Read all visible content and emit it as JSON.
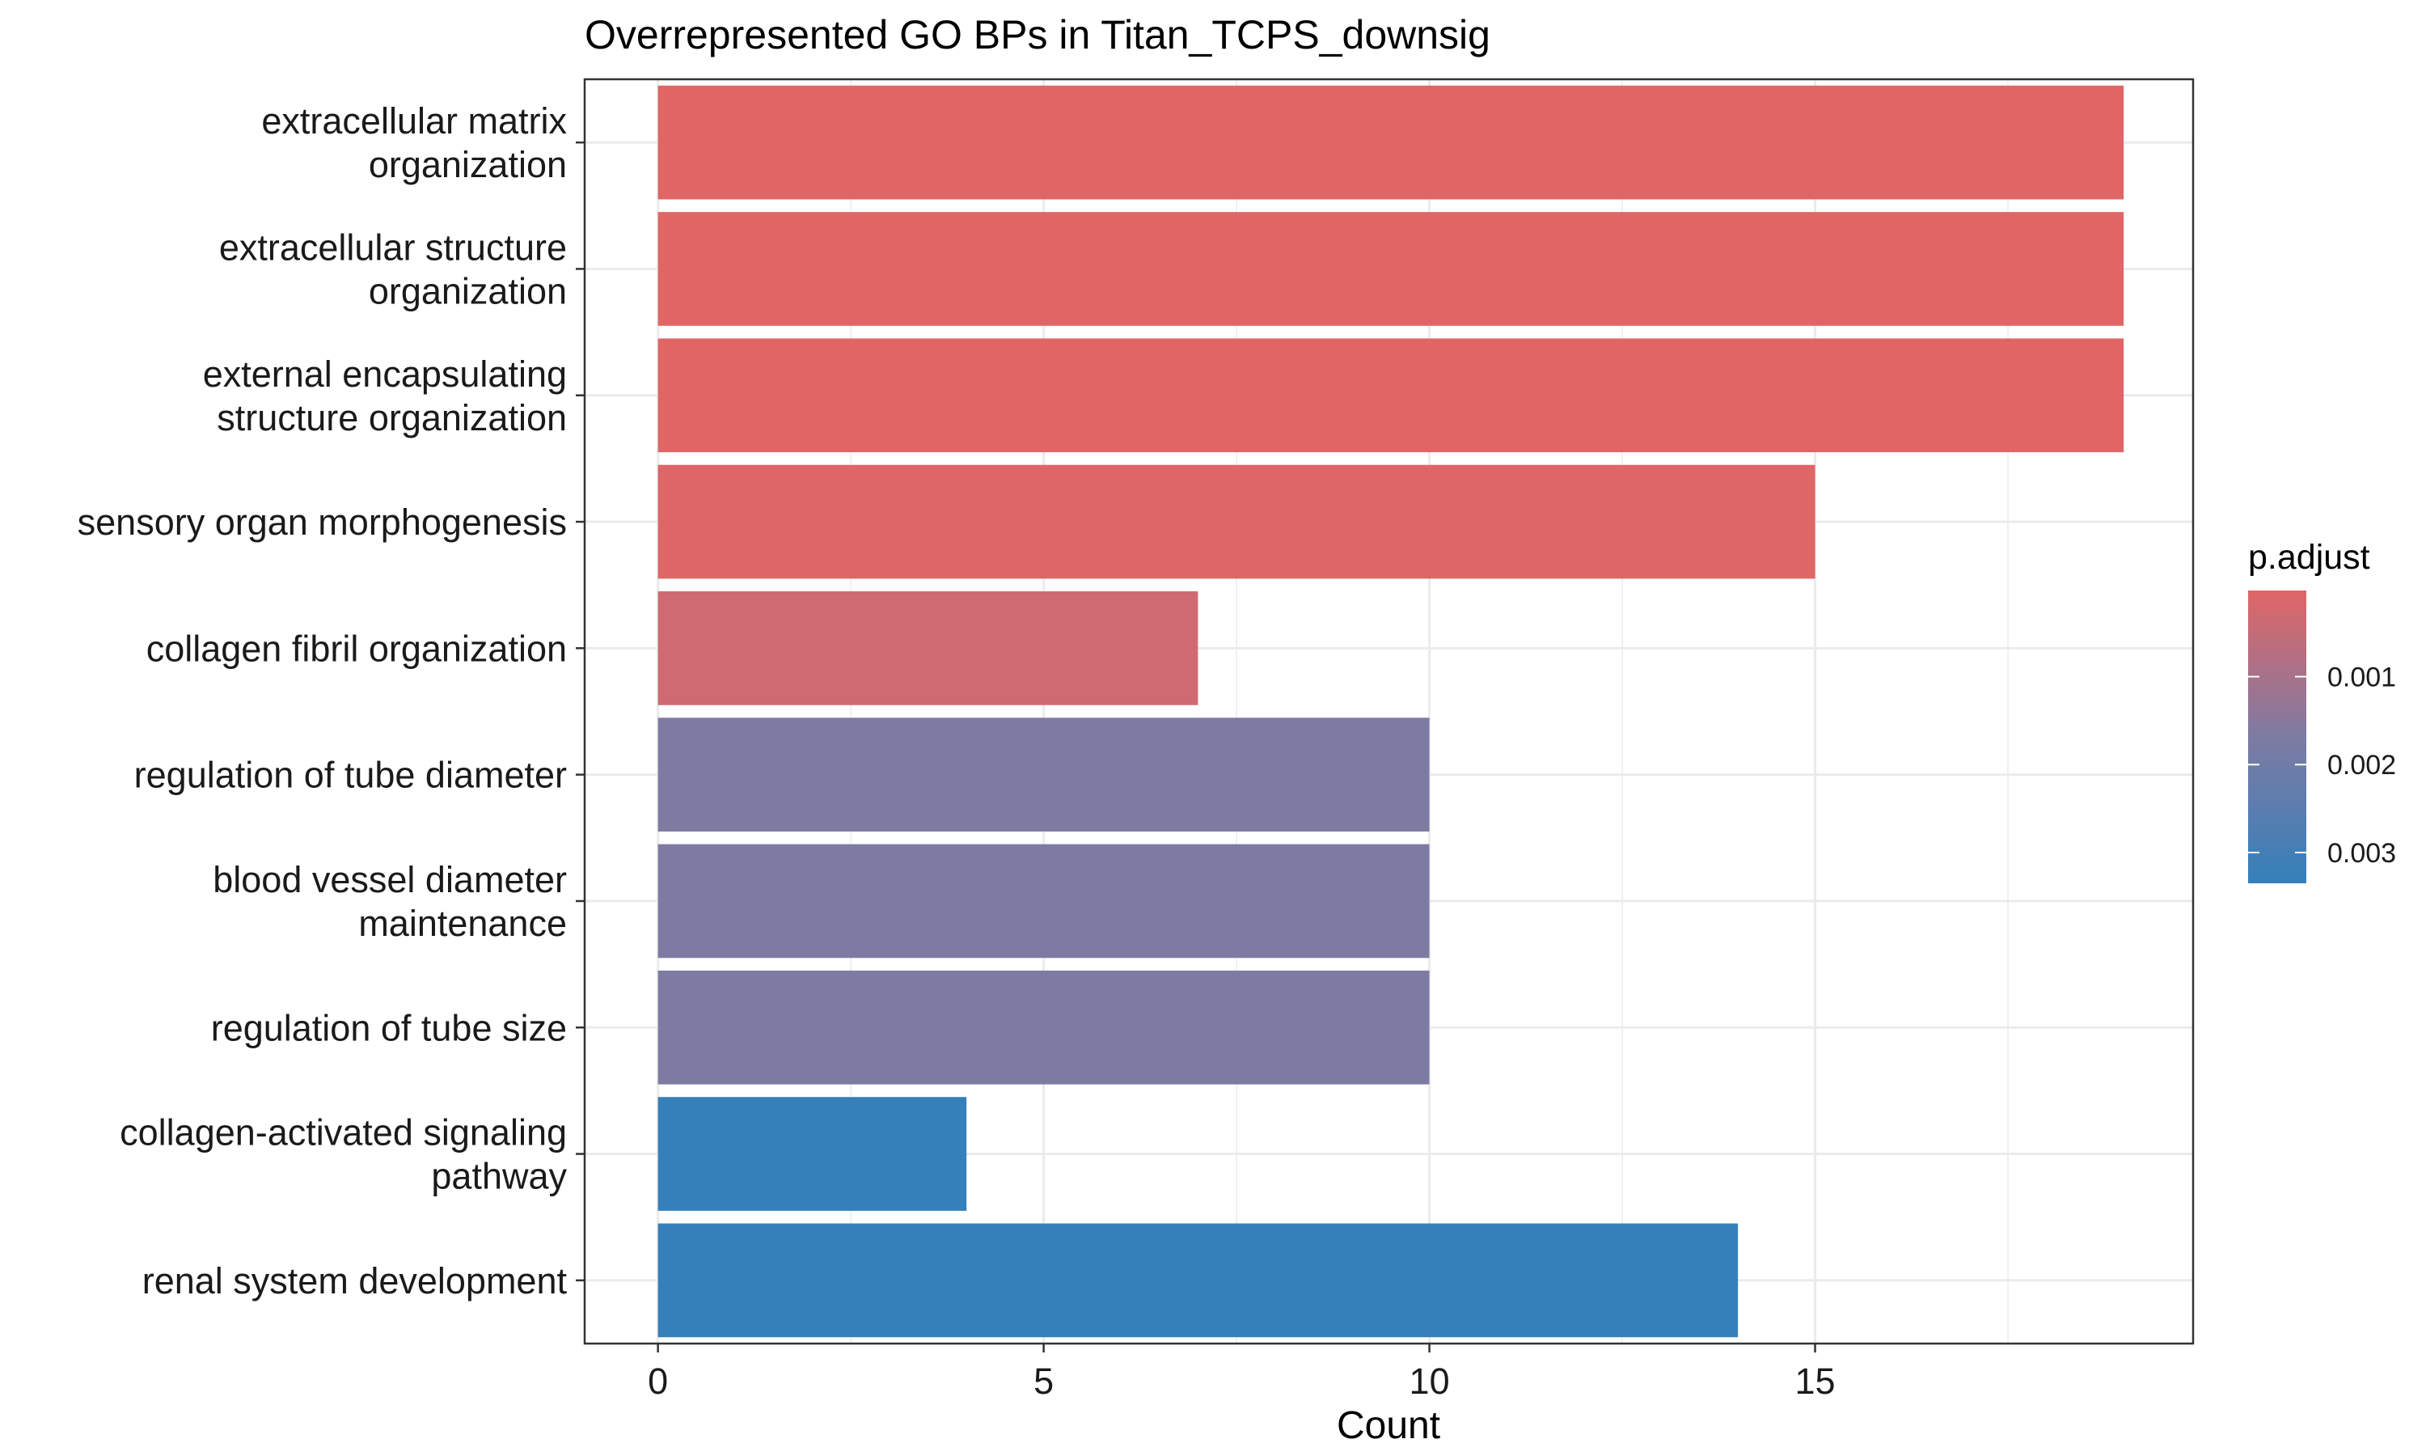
{
  "chart_data": {
    "type": "bar",
    "orientation": "horizontal",
    "title": "Overrepresented GO BPs in Titan_TCPS_downsig",
    "xlabel": "Count",
    "ylabel": "",
    "xlim": [
      -0.95,
      19.9
    ],
    "x_ticks": [
      0,
      5,
      10,
      15
    ],
    "grid": true,
    "categories": [
      [
        "extracellular matrix",
        "organization"
      ],
      [
        "extracellular structure",
        "organization"
      ],
      [
        "external encapsulating",
        "structure organization"
      ],
      [
        "sensory organ morphogenesis"
      ],
      [
        "collagen fibril organization"
      ],
      [
        "regulation of tube diameter"
      ],
      [
        "blood vessel diameter",
        "maintenance"
      ],
      [
        "regulation of tube size"
      ],
      [
        "collagen-activated signaling",
        "pathway"
      ],
      [
        "renal system development"
      ]
    ],
    "values": [
      19,
      19,
      19,
      15,
      7,
      10,
      10,
      10,
      4,
      14
    ],
    "bar_colors": [
      "#e06666",
      "#e06666",
      "#e06666",
      "#df6667",
      "#cf6a72",
      "#7e7ba3",
      "#7e7ba3",
      "#7e7ba3",
      "#3580bb",
      "#3580bb"
    ],
    "legend": {
      "title": "p.adjust",
      "position": "right",
      "gradient_top": "#e06666",
      "gradient_bottom": "#3580bb",
      "ticks": [
        {
          "label": "0.001",
          "value": 0.001
        },
        {
          "label": "0.002",
          "value": 0.002
        },
        {
          "label": "0.003",
          "value": 0.003
        }
      ],
      "range": [
        2e-05,
        0.00335
      ]
    }
  }
}
